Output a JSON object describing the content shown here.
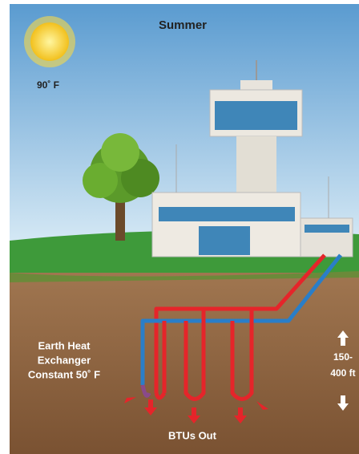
{
  "title": "Summer",
  "temperature": "90˚ F",
  "exchanger_label": [
    "Earth Heat",
    "Exchanger",
    "Constant 50˚ F"
  ],
  "depth_label": [
    "150-",
    "400 ft"
  ],
  "output_label": "BTUs Out"
}
